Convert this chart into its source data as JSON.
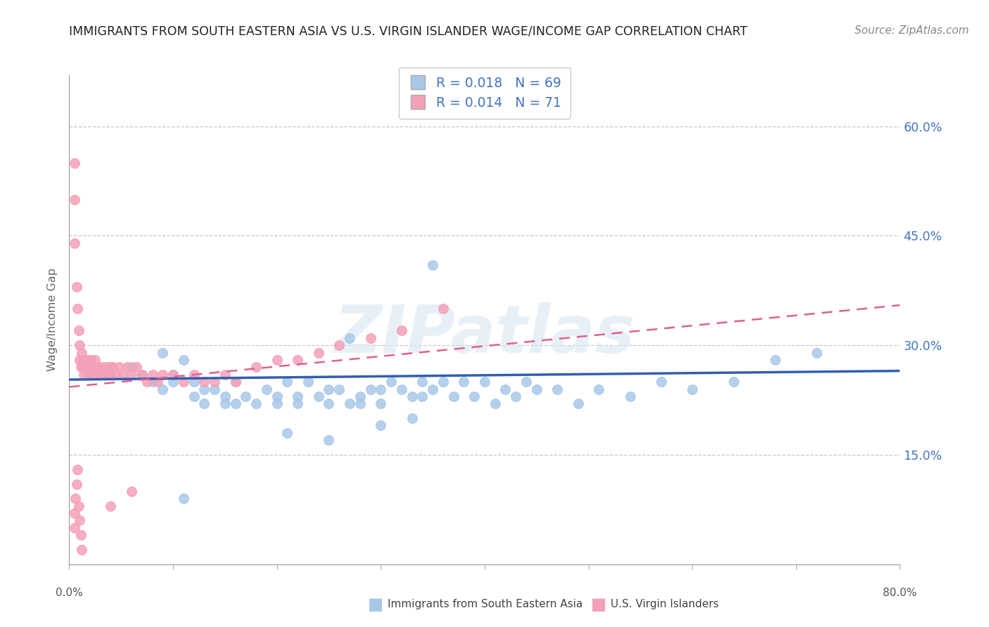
{
  "title": "IMMIGRANTS FROM SOUTH EASTERN ASIA VS U.S. VIRGIN ISLANDER WAGE/INCOME GAP CORRELATION CHART",
  "source": "Source: ZipAtlas.com",
  "ylabel": "Wage/Income Gap",
  "yticks": [
    "15.0%",
    "30.0%",
    "45.0%",
    "60.0%"
  ],
  "ytick_vals": [
    0.15,
    0.3,
    0.45,
    0.6
  ],
  "xlim": [
    0.0,
    0.8
  ],
  "ylim": [
    0.0,
    0.67
  ],
  "legend_blue_R": "R = 0.018",
  "legend_blue_N": "N = 69",
  "legend_pink_R": "R = 0.014",
  "legend_pink_N": "N = 71",
  "legend_label_blue": "Immigrants from South Eastern Asia",
  "legend_label_pink": "U.S. Virgin Islanders",
  "blue_color": "#a8c8e8",
  "pink_color": "#f4a0b8",
  "blue_line_color": "#3060b0",
  "pink_line_color": "#e06090",
  "grid_color": "#c8c8c8",
  "watermark": "ZIPatlas",
  "blue_scatter_x": [
    0.04,
    0.06,
    0.07,
    0.08,
    0.09,
    0.09,
    0.1,
    0.1,
    0.11,
    0.12,
    0.12,
    0.13,
    0.13,
    0.14,
    0.15,
    0.15,
    0.16,
    0.16,
    0.17,
    0.18,
    0.19,
    0.2,
    0.2,
    0.21,
    0.22,
    0.22,
    0.23,
    0.24,
    0.25,
    0.25,
    0.26,
    0.27,
    0.28,
    0.28,
    0.29,
    0.3,
    0.3,
    0.31,
    0.32,
    0.33,
    0.34,
    0.34,
    0.35,
    0.36,
    0.37,
    0.38,
    0.39,
    0.4,
    0.41,
    0.42,
    0.43,
    0.44,
    0.45,
    0.47,
    0.49,
    0.51,
    0.54,
    0.57,
    0.6,
    0.64,
    0.68,
    0.72,
    0.35,
    0.27,
    0.21,
    0.25,
    0.3,
    0.33,
    0.11
  ],
  "blue_scatter_y": [
    0.27,
    0.27,
    0.26,
    0.25,
    0.29,
    0.24,
    0.26,
    0.25,
    0.28,
    0.25,
    0.23,
    0.24,
    0.22,
    0.24,
    0.23,
    0.22,
    0.25,
    0.22,
    0.23,
    0.22,
    0.24,
    0.22,
    0.23,
    0.25,
    0.23,
    0.22,
    0.25,
    0.23,
    0.22,
    0.24,
    0.24,
    0.22,
    0.23,
    0.22,
    0.24,
    0.24,
    0.22,
    0.25,
    0.24,
    0.23,
    0.25,
    0.23,
    0.24,
    0.25,
    0.23,
    0.25,
    0.23,
    0.25,
    0.22,
    0.24,
    0.23,
    0.25,
    0.24,
    0.24,
    0.22,
    0.24,
    0.23,
    0.25,
    0.24,
    0.25,
    0.28,
    0.29,
    0.41,
    0.31,
    0.18,
    0.17,
    0.19,
    0.2,
    0.09
  ],
  "pink_scatter_x": [
    0.005,
    0.005,
    0.005,
    0.007,
    0.008,
    0.009,
    0.01,
    0.01,
    0.011,
    0.012,
    0.013,
    0.013,
    0.014,
    0.015,
    0.016,
    0.017,
    0.018,
    0.019,
    0.02,
    0.021,
    0.022,
    0.023,
    0.024,
    0.025,
    0.026,
    0.027,
    0.028,
    0.03,
    0.032,
    0.034,
    0.036,
    0.038,
    0.04,
    0.042,
    0.045,
    0.048,
    0.052,
    0.056,
    0.06,
    0.065,
    0.07,
    0.075,
    0.08,
    0.085,
    0.09,
    0.1,
    0.11,
    0.12,
    0.13,
    0.14,
    0.15,
    0.16,
    0.18,
    0.2,
    0.22,
    0.24,
    0.26,
    0.29,
    0.32,
    0.36,
    0.005,
    0.005,
    0.006,
    0.007,
    0.008,
    0.009,
    0.01,
    0.011,
    0.012,
    0.04,
    0.06
  ],
  "pink_scatter_y": [
    0.55,
    0.5,
    0.44,
    0.38,
    0.35,
    0.32,
    0.3,
    0.28,
    0.27,
    0.29,
    0.28,
    0.27,
    0.26,
    0.28,
    0.27,
    0.28,
    0.27,
    0.26,
    0.27,
    0.28,
    0.27,
    0.26,
    0.27,
    0.28,
    0.27,
    0.26,
    0.27,
    0.27,
    0.26,
    0.27,
    0.26,
    0.27,
    0.26,
    0.27,
    0.26,
    0.27,
    0.26,
    0.27,
    0.26,
    0.27,
    0.26,
    0.25,
    0.26,
    0.25,
    0.26,
    0.26,
    0.25,
    0.26,
    0.25,
    0.25,
    0.26,
    0.25,
    0.27,
    0.28,
    0.28,
    0.29,
    0.3,
    0.31,
    0.32,
    0.35,
    0.05,
    0.07,
    0.09,
    0.11,
    0.13,
    0.08,
    0.06,
    0.04,
    0.02,
    0.08,
    0.1
  ],
  "blue_line_x": [
    0.0,
    0.8
  ],
  "blue_line_y": [
    0.253,
    0.265
  ],
  "pink_line_x": [
    0.0,
    0.8
  ],
  "pink_line_y": [
    0.243,
    0.355
  ]
}
